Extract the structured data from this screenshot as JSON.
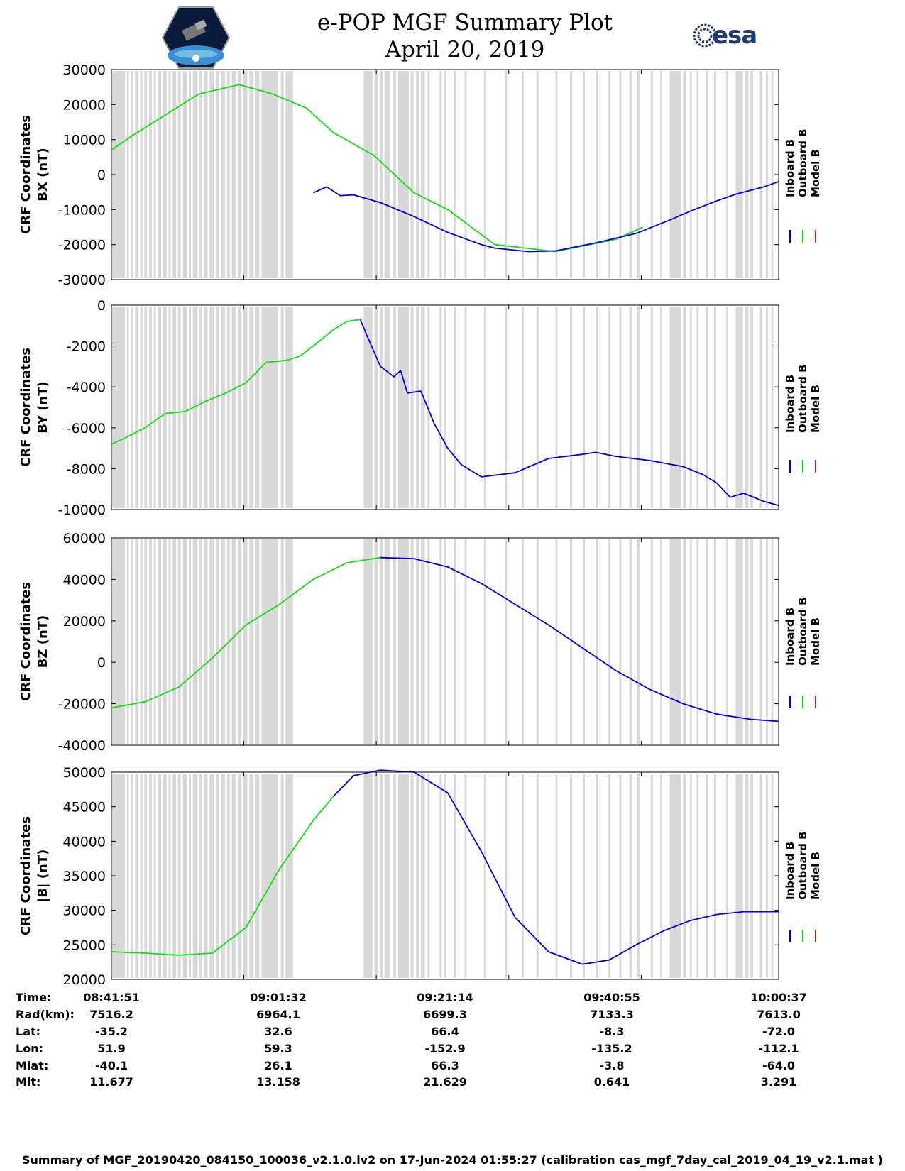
{
  "header": {
    "title": "e-POP MGF Summary Plot",
    "date": "April 20, 2019",
    "left_logo": "cassiope-satellite-logo",
    "right_logo": "esa-logo",
    "esa_text": "esa"
  },
  "colors": {
    "inboard": "#0000dd",
    "outboard": "#11dd11",
    "model": "#ee1111",
    "shade": "#d8d8d8"
  },
  "legend": [
    "Inboard B",
    "Outboard B",
    "Model B"
  ],
  "chart_data": [
    {
      "type": "line",
      "ylabel": "CRF Coordinates",
      "ylabel2": "BX (nT)",
      "ylim": [
        -30000,
        30000
      ],
      "yticks": [
        30000,
        20000,
        10000,
        0,
        -10000,
        -20000,
        -30000
      ],
      "x_minutes": [
        0,
        3,
        8,
        13,
        19,
        24,
        29,
        33,
        39,
        45,
        50,
        57,
        66,
        75,
        79
      ],
      "green": [
        7000,
        11000,
        17000,
        23000,
        25700,
        23000,
        19000,
        12000,
        5500,
        -5200,
        -10000,
        -20000,
        -22000,
        -18500,
        -15000
      ],
      "blue_x": [
        30,
        32,
        34,
        36,
        40,
        45,
        50,
        55,
        57,
        62,
        66,
        72,
        78,
        83,
        86,
        90,
        93,
        95,
        97,
        99.2
      ],
      "blue": [
        -5200,
        -3500,
        -6000,
        -5800,
        -8000,
        -12000,
        -16500,
        -20000,
        -21000,
        -22000,
        -21800,
        -19500,
        -16800,
        -13000,
        -10500,
        -7500,
        -5500,
        -4500,
        -3500,
        -2000
      ]
    },
    {
      "type": "line",
      "ylabel": "CRF Coordinates",
      "ylabel2": "BY (nT)",
      "ylim": [
        -10000,
        0
      ],
      "yticks": [
        0,
        -2000,
        -4000,
        -6000,
        -8000,
        -10000
      ],
      "green_x": [
        0,
        2,
        5,
        8,
        11,
        14,
        17,
        20,
        23,
        26,
        28,
        30,
        33,
        35,
        37
      ],
      "green": [
        -6800,
        -6500,
        -6000,
        -5300,
        -5200,
        -4700,
        -4300,
        -3800,
        -2800,
        -2700,
        -2500,
        -2000,
        -1200,
        -800,
        -700
      ],
      "blue_x": [
        37,
        38,
        40,
        42,
        43,
        44,
        46,
        47,
        48,
        50,
        52,
        55,
        60,
        65,
        70,
        72,
        75,
        80,
        85,
        88,
        90,
        92,
        94,
        97,
        99.2
      ],
      "blue": [
        -700,
        -1500,
        -3000,
        -3500,
        -3200,
        -4300,
        -4200,
        -5000,
        -5800,
        -7000,
        -7800,
        -8400,
        -8200,
        -7500,
        -7300,
        -7200,
        -7400,
        -7600,
        -7900,
        -8300,
        -8700,
        -9400,
        -9200,
        -9600,
        -9800
      ]
    },
    {
      "type": "line",
      "ylabel": "CRF Coordinates",
      "ylabel2": "BZ (nT)",
      "ylim": [
        -40000,
        60000
      ],
      "yticks": [
        60000,
        40000,
        20000,
        0,
        -20000,
        -40000
      ],
      "green_x": [
        0,
        5,
        10,
        15,
        20,
        25,
        30,
        35,
        40
      ],
      "green": [
        -22000,
        -19000,
        -12000,
        2000,
        18000,
        28000,
        40000,
        48000,
        50500
      ],
      "blue_x": [
        40,
        45,
        50,
        55,
        60,
        65,
        70,
        75,
        80,
        85,
        90,
        95,
        99.2
      ],
      "blue": [
        50500,
        50000,
        46000,
        38000,
        28000,
        18000,
        7000,
        -4000,
        -13000,
        -20000,
        -25000,
        -27500,
        -28500
      ]
    },
    {
      "type": "line",
      "ylabel": "CRF Coordinates",
      "ylabel2": "|B| (nT)",
      "ylim": [
        20000,
        50000
      ],
      "yticks": [
        50000,
        45000,
        40000,
        35000,
        30000,
        25000,
        20000
      ],
      "green_x": [
        0,
        5,
        10,
        15,
        20,
        25,
        30,
        33
      ],
      "green": [
        24000,
        23800,
        23500,
        23800,
        27500,
        36000,
        43000,
        46500
      ],
      "blue_x": [
        33,
        36,
        40,
        45,
        50,
        55,
        60,
        65,
        70,
        74,
        78,
        82,
        86,
        90,
        94,
        99.2
      ],
      "blue": [
        46500,
        49500,
        50300,
        50000,
        47000,
        38500,
        29000,
        24000,
        22200,
        22800,
        25000,
        27000,
        28500,
        29400,
        29800,
        29800
      ]
    }
  ],
  "time_table": {
    "labels": [
      "Time:",
      "Rad(km):",
      "Lat:",
      "Lon:",
      "Mlat:",
      "Mlt:"
    ],
    "columns": [
      {
        "time": "08:41:51",
        "rad": "7516.2",
        "lat": "-35.2",
        "lon": "51.9",
        "mlat": "-40.1",
        "mlt": "11.677"
      },
      {
        "time": "09:01:32",
        "rad": "6964.1",
        "lat": "32.6",
        "lon": "59.3",
        "mlat": "26.1",
        "mlt": "13.158"
      },
      {
        "time": "09:21:14",
        "rad": "6699.3",
        "lat": "66.4",
        "lon": "-152.9",
        "mlat": "66.3",
        "mlt": "21.629"
      },
      {
        "time": "09:40:55",
        "rad": "7133.3",
        "lat": "-8.3",
        "lon": "-135.2",
        "mlat": "-3.8",
        "mlt": "0.641"
      },
      {
        "time": "10:00:37",
        "rad": "7613.0",
        "lat": "-72.0",
        "lon": "-112.1",
        "mlat": "-64.0",
        "mlt": "3.291"
      }
    ]
  },
  "footer": "Summary of MGF_20190420_084150_100036_v2.1.0.lv2 on 17-Jun-2024 01:55:27 (calibration cas_mgf_7day_cal_2019_04_19_v2.1.mat )"
}
